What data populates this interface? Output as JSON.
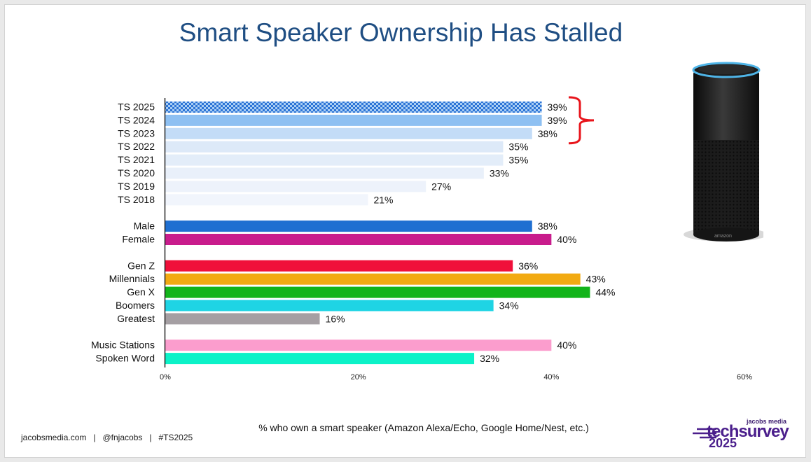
{
  "title": "Smart Speaker Ownership Has Stalled",
  "caption": "% who own a smart speaker (Amazon Alexa/Echo, Google Home/Nest, etc.)",
  "footer": {
    "left": "jacobsmedia.com   |   @fnjacobs   |   #TS2025"
  },
  "logo": {
    "small": "jacobs media",
    "big": "techsurvey",
    "year": "2025"
  },
  "speaker_brand": "amazon",
  "chart_data": {
    "type": "bar",
    "orientation": "horizontal",
    "xlim": [
      0,
      60
    ],
    "x_ticks": [
      "0%",
      "20%",
      "40%",
      "60%"
    ],
    "value_suffix": "%",
    "groups": [
      {
        "bars": [
          {
            "label": "TS 2025",
            "value": 39,
            "color": "#2e75d6",
            "pattern": "checker"
          },
          {
            "label": "TS 2024",
            "value": 39,
            "color": "#8ec0f2"
          },
          {
            "label": "TS 2023",
            "value": 38,
            "color": "#c3dcf7"
          },
          {
            "label": "TS 2022",
            "value": 35,
            "color": "#dde9f8"
          },
          {
            "label": "TS 2021",
            "value": 35,
            "color": "#e3edf9"
          },
          {
            "label": "TS 2020",
            "value": 33,
            "color": "#e9f0fa"
          },
          {
            "label": "TS 2019",
            "value": 27,
            "color": "#edf2fb"
          },
          {
            "label": "TS 2018",
            "value": 21,
            "color": "#f1f5fc"
          }
        ]
      },
      {
        "bars": [
          {
            "label": "Male",
            "value": 38,
            "color": "#1f6fd1"
          },
          {
            "label": "Female",
            "value": 40,
            "color": "#c81c8c"
          }
        ]
      },
      {
        "bars": [
          {
            "label": "Gen Z",
            "value": 36,
            "color": "#f0103a"
          },
          {
            "label": "Millennials",
            "value": 43,
            "color": "#f2aa12"
          },
          {
            "label": "Gen X",
            "value": 44,
            "color": "#12b41a"
          },
          {
            "label": "Boomers",
            "value": 34,
            "color": "#1fd4e4"
          },
          {
            "label": "Greatest",
            "value": 16,
            "color": "#a59fa3"
          }
        ]
      },
      {
        "bars": [
          {
            "label": "Music Stations",
            "value": 40,
            "color": "#fb9dcd"
          },
          {
            "label": "Spoken Word",
            "value": 32,
            "color": "#0cf2c8"
          }
        ]
      }
    ],
    "bracket": {
      "from": "TS 2025",
      "to": "TS 2023",
      "color": "#e8141b"
    },
    "grid": false
  }
}
